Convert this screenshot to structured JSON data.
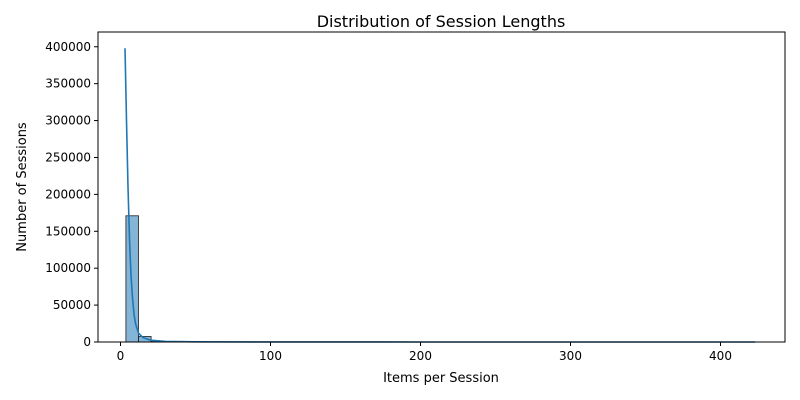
{
  "chart_data": {
    "type": "bar",
    "title": "Distribution of Session Lengths",
    "xlabel": "Items per Session",
    "ylabel": "Number of Sessions",
    "xlim": [
      -15,
      443
    ],
    "ylim": [
      0,
      420000
    ],
    "xticks": [
      0,
      100,
      200,
      300,
      400
    ],
    "yticks": [
      0,
      50000,
      100000,
      150000,
      200000,
      250000,
      300000,
      350000,
      400000
    ],
    "grid": false,
    "bin_width": 8.4,
    "bins": [
      {
        "x0": 3.6,
        "x1": 12.0,
        "count": 171000
      },
      {
        "x0": 12.0,
        "x1": 20.4,
        "count": 7500
      },
      {
        "x0": 20.4,
        "x1": 28.8,
        "count": 1500
      },
      {
        "x0": 28.8,
        "x1": 37.2,
        "count": 500
      },
      {
        "x0": 37.2,
        "x1": 45.6,
        "count": 200
      }
    ],
    "density_curve": {
      "x": [
        3,
        4,
        5,
        6,
        7,
        8,
        9,
        10,
        12,
        15,
        20,
        30,
        50,
        100,
        200,
        300,
        423
      ],
      "y": [
        398000,
        300000,
        210000,
        140000,
        90000,
        60000,
        38000,
        25000,
        12000,
        6000,
        2500,
        800,
        200,
        50,
        10,
        5,
        0
      ]
    },
    "colors": {
      "bar": "#1f77b4",
      "line": "#1f77b4"
    }
  }
}
